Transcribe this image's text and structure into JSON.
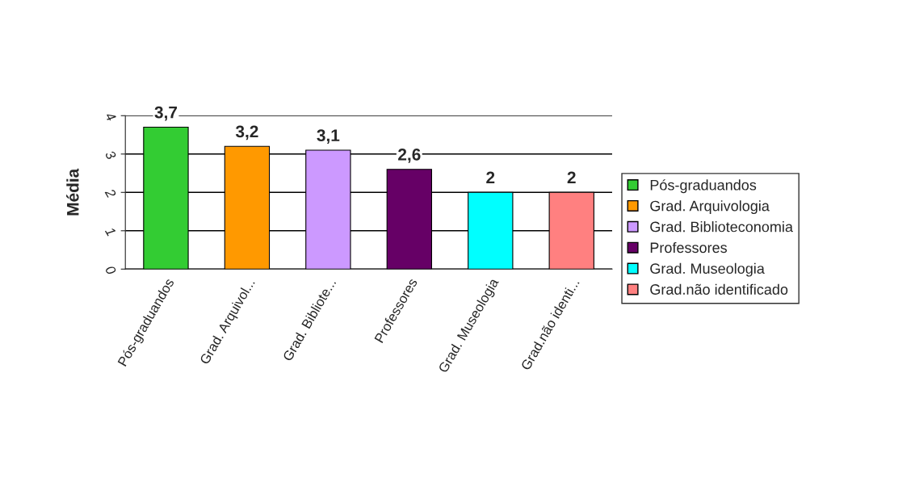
{
  "chart_data": {
    "type": "bar",
    "ylabel": "Média",
    "categories": [
      "Pós-graduandos",
      "Grad. Arquivol...",
      "Grad. Bibliote...",
      "Professores",
      "Grad. Museologia",
      "Grad.não identi..."
    ],
    "series": [
      {
        "name": "Pós-graduandos",
        "color": "#33cc33",
        "values": [
          3.7,
          null,
          null,
          null,
          null,
          null
        ],
        "value_labels": [
          "3,7",
          null,
          null,
          null,
          null,
          null
        ]
      },
      {
        "name": "Grad. Arquivologia",
        "color": "#ff9900",
        "values": [
          null,
          3.2,
          null,
          null,
          null,
          null
        ],
        "value_labels": [
          null,
          "3,2",
          null,
          null,
          null,
          null
        ]
      },
      {
        "name": "Grad. Biblioteconomia",
        "color": "#cc99ff",
        "values": [
          null,
          null,
          3.1,
          null,
          null,
          null
        ],
        "value_labels": [
          null,
          null,
          "3,1",
          null,
          null,
          null
        ]
      },
      {
        "name": "Professores",
        "color": "#660066",
        "values": [
          null,
          null,
          null,
          2.6,
          null,
          null
        ],
        "value_labels": [
          null,
          null,
          null,
          "2,6",
          null,
          null
        ]
      },
      {
        "name": "Grad. Museologia",
        "color": "#00ffff",
        "values": [
          null,
          null,
          null,
          null,
          2,
          null
        ],
        "value_labels": [
          null,
          null,
          null,
          null,
          "2",
          null
        ]
      },
      {
        "name": "Grad.não identificado",
        "color": "#ff8080",
        "values": [
          null,
          null,
          null,
          null,
          null,
          2
        ],
        "value_labels": [
          null,
          null,
          null,
          null,
          null,
          "2"
        ]
      }
    ],
    "ylim": [
      0,
      4
    ],
    "yticks": [
      0,
      1,
      2,
      3,
      4
    ],
    "grid": "y",
    "legend": "right"
  }
}
